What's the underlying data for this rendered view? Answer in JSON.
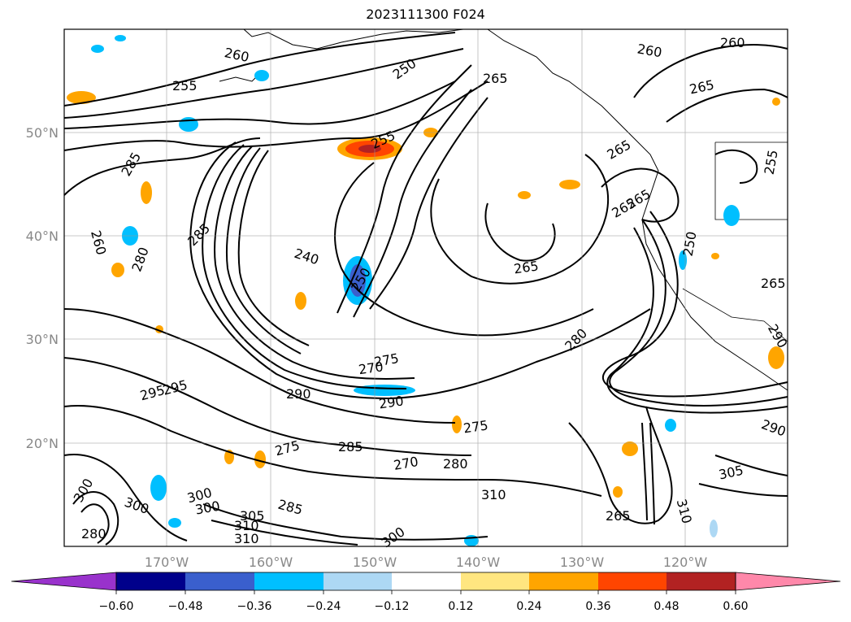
{
  "map": {
    "title": "2023111300 F024",
    "lat_labels": [
      "50°N",
      "40°N",
      "30°N",
      "20°N"
    ],
    "lon_labels": [
      "170°W",
      "160°W",
      "150°W",
      "140°W",
      "130°W",
      "120°W"
    ],
    "gridlines": true,
    "contour_labels": [
      "260",
      "250",
      "265",
      "260",
      "260",
      "265",
      "255",
      "255",
      "265",
      "285",
      "265",
      "265",
      "285",
      "255",
      "260",
      "265",
      "280",
      "240",
      "250",
      "250",
      "265",
      "275",
      "270",
      "280",
      "290",
      "290",
      "295",
      "295",
      "275",
      "285",
      "275",
      "270",
      "280",
      "310",
      "300",
      "305",
      "310",
      "300",
      "300",
      "305",
      "310",
      "300",
      "285",
      "300",
      "290",
      "305",
      "310",
      "290",
      "265",
      "280"
    ],
    "shading_colors": {
      "purple": "#9932cc",
      "navy": "#00008b",
      "royal": "#3a5fcd",
      "sky": "#00bfff",
      "pale_blue": "#add8f4",
      "white": "#ffffff",
      "pale_yellow": "#ffe680",
      "orange": "#ffa500",
      "orange_red": "#ff4500",
      "firebrick": "#b22222",
      "pink": "#ff88aa"
    }
  },
  "colorbar": {
    "ticks": [
      "−0.60",
      "−0.48",
      "−0.36",
      "−0.24",
      "−0.12",
      "0.12",
      "0.24",
      "0.36",
      "0.48",
      "0.60"
    ],
    "colors": [
      "#9932cc",
      "#00008b",
      "#3a5fcd",
      "#00bfff",
      "#add8f4",
      "#ffffff",
      "#ffe680",
      "#ffa500",
      "#ff4500",
      "#b22222",
      "#ff88aa"
    ],
    "extend": "both"
  }
}
